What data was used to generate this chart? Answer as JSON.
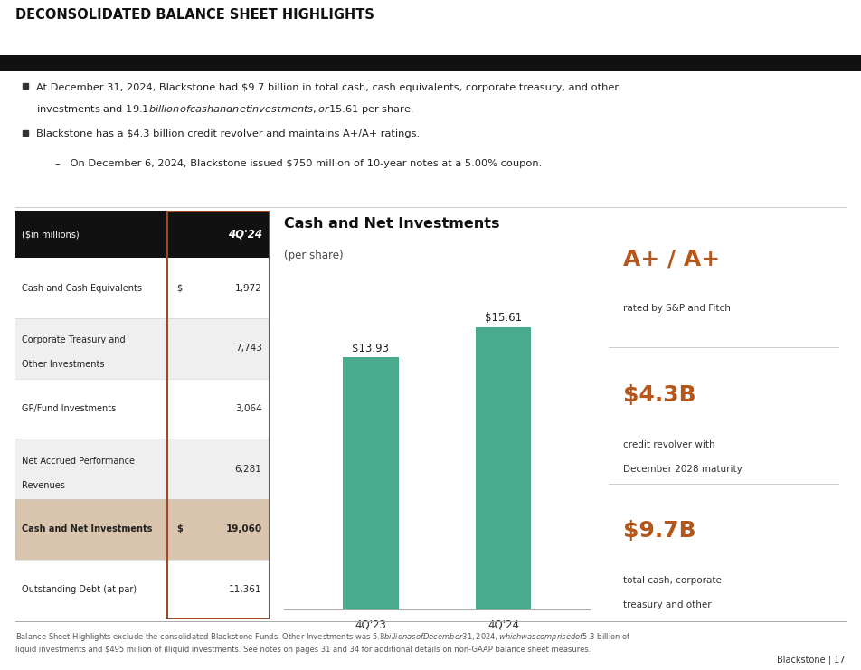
{
  "title": "DECONSOLIDATED BALANCE SHEET HIGHLIGHTS",
  "bullet1_line1": "At December 31, 2024, Blackstone had $9.7 billion in total cash, cash equivalents, corporate treasury, and other",
  "bullet1_line2": "investments and $19.1 billion of cash and net investments, or $15.61 per share.",
  "bullet2": "Blackstone has a $4.3 billion credit revolver and maintains A+/A+ ratings.",
  "subbullet": "On December 6, 2024, Blackstone issued $750 million of 10-year notes at a 5.00% coupon.",
  "table_header_col1": "($in millions)",
  "table_header_col2": "4Q'24",
  "table_rows": [
    {
      "label": "Cash and Cash Equivalents",
      "dollar": "$",
      "value": "1,972",
      "bold": false,
      "bg": "#ffffff"
    },
    {
      "label": "Corporate Treasury and\nOther Investments",
      "dollar": "",
      "value": "7,743",
      "bold": false,
      "bg": "#efefef"
    },
    {
      "label": "GP/Fund Investments",
      "dollar": "",
      "value": "3,064",
      "bold": false,
      "bg": "#ffffff"
    },
    {
      "label": "Net Accrued Performance\nRevenues",
      "dollar": "",
      "value": "6,281",
      "bold": false,
      "bg": "#efefef"
    },
    {
      "label": "Cash and Net Investments",
      "dollar": "$",
      "value": "19,060",
      "bold": true,
      "bg": "#d9c4ae"
    },
    {
      "label": "Outstanding Debt (at par)",
      "dollar": "",
      "value": "11,361",
      "bold": false,
      "bg": "#ffffff"
    }
  ],
  "chart_title": "Cash and Net Investments",
  "chart_subtitle": "(per share)",
  "bar_categories": [
    "4Q'23",
    "4Q'24"
  ],
  "bar_values": [
    13.93,
    15.61
  ],
  "bar_labels": [
    "$13.93",
    "$15.61"
  ],
  "bar_color": "#4aaa8e",
  "right_panel_bg": "#f0ebe3",
  "right_items": [
    {
      "value": "A+ / A+",
      "desc": "rated by S&P and Fitch"
    },
    {
      "value": "$4.3B",
      "desc": "credit revolver with\nDecember 2028 maturity"
    },
    {
      "value": "$9.7B",
      "desc": "total cash, corporate\ntreasury and other"
    }
  ],
  "right_value_color": "#b5561a",
  "footer": "Balance Sheet Highlights exclude the consolidated Blackstone Funds. Other Investments was $5.8 billion as of December 31, 2024, which was comprised of $5.3 billion of\nliquid investments and $495 million of illiquid investments. See notes on pages 31 and 34 for additional details on non-GAAP balance sheet measures.",
  "page_num": "Blackstone | 17",
  "table_border_color": "#9e4a20",
  "header_bg": "#111111",
  "header_text_color": "#ffffff"
}
